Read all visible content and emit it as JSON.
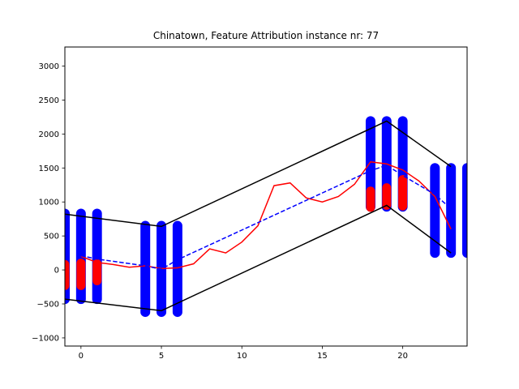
{
  "chart_data": {
    "type": "line",
    "title": "Chinatown, Feature Attribution instance nr: 77",
    "xlabel": "",
    "ylabel": "",
    "xlim": [
      -1,
      24
    ],
    "ylim": [
      -1120,
      3280
    ],
    "x_ticks": [
      0,
      5,
      10,
      15,
      20
    ],
    "y_ticks": [
      -1000,
      -500,
      0,
      500,
      1000,
      1500,
      2000,
      2500,
      3000
    ],
    "grid": false,
    "colors": {
      "interval_bars": "#0000ff",
      "attribution_bars": "#ff0000",
      "envelope": "#000000",
      "series": "#ff0000",
      "reference": "#0000ff"
    },
    "envelope_upper": {
      "x": [
        -1,
        5,
        19,
        23
      ],
      "y": [
        820,
        640,
        2190,
        1520
      ]
    },
    "envelope_lower": {
      "x": [
        -1,
        5,
        19,
        23
      ],
      "y": [
        -430,
        -600,
        950,
        250
      ]
    },
    "interval_bars": [
      {
        "x": -1,
        "low": -430,
        "high": 830
      },
      {
        "x": 0,
        "low": -430,
        "high": 830
      },
      {
        "x": 1,
        "low": -430,
        "high": 830
      },
      {
        "x": 4,
        "low": -620,
        "high": 650
      },
      {
        "x": 5,
        "low": -620,
        "high": 650
      },
      {
        "x": 6,
        "low": -620,
        "high": 650
      },
      {
        "x": 18,
        "low": 930,
        "high": 2190
      },
      {
        "x": 19,
        "low": 930,
        "high": 2190
      },
      {
        "x": 20,
        "low": 930,
        "high": 2190
      },
      {
        "x": 22,
        "low": 250,
        "high": 1500
      },
      {
        "x": 23,
        "low": 250,
        "high": 1500
      },
      {
        "x": 24,
        "low": 250,
        "high": 1500
      }
    ],
    "attribution_bars": [
      {
        "x": -1,
        "low": -230,
        "high": 80
      },
      {
        "x": 0,
        "low": -230,
        "high": 100
      },
      {
        "x": 1,
        "low": -160,
        "high": 90
      },
      {
        "x": 18,
        "low": 920,
        "high": 1160
      },
      {
        "x": 19,
        "low": 950,
        "high": 1210
      },
      {
        "x": 20,
        "low": 940,
        "high": 1330
      }
    ],
    "series": [
      {
        "style": "solid",
        "x": [
          0,
          1,
          2,
          3,
          4,
          5,
          6,
          7,
          8,
          9,
          10,
          11,
          12,
          13,
          14,
          15,
          16,
          17,
          18,
          19,
          20,
          21,
          22,
          23
        ],
        "y": [
          200,
          110,
          80,
          40,
          60,
          20,
          30,
          90,
          310,
          250,
          410,
          650,
          1240,
          1280,
          1060,
          1000,
          1080,
          1260,
          1590,
          1560,
          1470,
          1310,
          1080,
          600
        ]
      },
      {
        "style": "dashed",
        "x": [
          0,
          1,
          4,
          5,
          6,
          18,
          19,
          20,
          22,
          23
        ],
        "y": [
          210,
          160,
          60,
          10,
          150,
          1460,
          1540,
          1390,
          1110,
          900
        ]
      }
    ]
  }
}
